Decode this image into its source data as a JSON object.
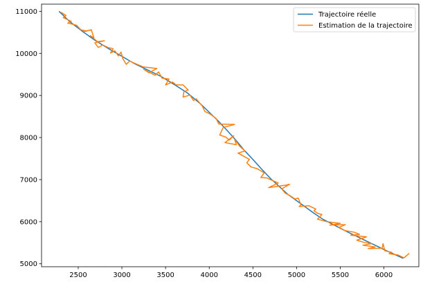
{
  "chart_data": {
    "type": "line",
    "title": "",
    "xlabel": "",
    "ylabel": "",
    "xlim": [
      2080,
      6400
    ],
    "ylim": [
      4930,
      11170
    ],
    "xticks": [
      2500,
      3000,
      3500,
      4000,
      4500,
      5000,
      5500,
      6000
    ],
    "yticks": [
      5000,
      6000,
      7000,
      8000,
      9000,
      10000,
      11000
    ],
    "grid": false,
    "legend_position": "top-right",
    "series": [
      {
        "name": "Trajectoire réelle",
        "color": "#1f77b4",
        "points": [
          [
            2280,
            11000
          ],
          [
            2400,
            10760
          ],
          [
            2550,
            10520
          ],
          [
            2700,
            10300
          ],
          [
            2850,
            10110
          ],
          [
            3000,
            9930
          ],
          [
            3150,
            9750
          ],
          [
            3300,
            9600
          ],
          [
            3450,
            9450
          ],
          [
            3600,
            9260
          ],
          [
            3750,
            9060
          ],
          [
            3900,
            8800
          ],
          [
            4000,
            8600
          ],
          [
            4100,
            8400
          ],
          [
            4200,
            8180
          ],
          [
            4300,
            7950
          ],
          [
            4400,
            7700
          ],
          [
            4500,
            7480
          ],
          [
            4600,
            7250
          ],
          [
            4700,
            7030
          ],
          [
            4800,
            6840
          ],
          [
            4900,
            6650
          ],
          [
            5000,
            6500
          ],
          [
            5100,
            6350
          ],
          [
            5200,
            6200
          ],
          [
            5300,
            6060
          ],
          [
            5450,
            5900
          ],
          [
            5600,
            5740
          ],
          [
            5750,
            5590
          ],
          [
            5900,
            5440
          ],
          [
            6050,
            5290
          ],
          [
            6220,
            5130
          ]
        ]
      },
      {
        "name": "Estimation de la trajectoire",
        "color": "#ff7f0e",
        "points": [
          [
            2300,
            10980
          ],
          [
            2360,
            10900
          ],
          [
            2330,
            10850
          ],
          [
            2420,
            10760
          ],
          [
            2380,
            10720
          ],
          [
            2480,
            10670
          ],
          [
            2530,
            10560
          ],
          [
            2600,
            10530
          ],
          [
            2560,
            10520
          ],
          [
            2650,
            10560
          ],
          [
            2680,
            10370
          ],
          [
            2640,
            10420
          ],
          [
            2720,
            10280
          ],
          [
            2800,
            10300
          ],
          [
            2690,
            10250
          ],
          [
            2730,
            10140
          ],
          [
            2780,
            10200
          ],
          [
            2840,
            10140
          ],
          [
            2900,
            10110
          ],
          [
            2870,
            10010
          ],
          [
            2920,
            10060
          ],
          [
            2960,
            9940
          ],
          [
            2990,
            10030
          ],
          [
            3010,
            9880
          ],
          [
            3050,
            9740
          ],
          [
            3090,
            9820
          ],
          [
            3150,
            9760
          ],
          [
            3240,
            9680
          ],
          [
            3400,
            9640
          ],
          [
            3310,
            9540
          ],
          [
            3250,
            9620
          ],
          [
            3380,
            9480
          ],
          [
            3420,
            9560
          ],
          [
            3460,
            9410
          ],
          [
            3540,
            9390
          ],
          [
            3500,
            9250
          ],
          [
            3580,
            9320
          ],
          [
            3620,
            9250
          ],
          [
            3700,
            9250
          ],
          [
            3760,
            9130
          ],
          [
            3710,
            9090
          ],
          [
            3700,
            8960
          ],
          [
            3780,
            9010
          ],
          [
            3820,
            8880
          ],
          [
            3850,
            8920
          ],
          [
            3920,
            8750
          ],
          [
            3950,
            8620
          ],
          [
            4010,
            8560
          ],
          [
            4080,
            8450
          ],
          [
            4110,
            8320
          ],
          [
            4290,
            8310
          ],
          [
            4160,
            8240
          ],
          [
            4120,
            8060
          ],
          [
            4190,
            8010
          ],
          [
            4230,
            7940
          ],
          [
            4280,
            8040
          ],
          [
            4180,
            7880
          ],
          [
            4310,
            7830
          ],
          [
            4290,
            7960
          ],
          [
            4350,
            7790
          ],
          [
            4410,
            7680
          ],
          [
            4330,
            7630
          ],
          [
            4460,
            7480
          ],
          [
            4430,
            7400
          ],
          [
            4480,
            7300
          ],
          [
            4550,
            7260
          ],
          [
            4630,
            7160
          ],
          [
            4590,
            7050
          ],
          [
            4660,
            7040
          ],
          [
            4700,
            7000
          ],
          [
            4790,
            6920
          ],
          [
            4680,
            6810
          ],
          [
            4880,
            6870
          ],
          [
            4920,
            6890
          ],
          [
            4830,
            6780
          ],
          [
            4870,
            6680
          ],
          [
            4940,
            6600
          ],
          [
            4980,
            6540
          ],
          [
            5020,
            6560
          ],
          [
            5050,
            6400
          ],
          [
            5030,
            6360
          ],
          [
            5140,
            6380
          ],
          [
            5220,
            6300
          ],
          [
            5200,
            6260
          ],
          [
            5240,
            6200
          ],
          [
            5290,
            6170
          ],
          [
            5240,
            6060
          ],
          [
            5350,
            6000
          ],
          [
            5500,
            5960
          ],
          [
            5380,
            5920
          ],
          [
            5560,
            5930
          ],
          [
            5480,
            5860
          ],
          [
            5550,
            5790
          ],
          [
            5660,
            5750
          ],
          [
            5720,
            5700
          ],
          [
            5620,
            5680
          ],
          [
            5800,
            5640
          ],
          [
            5690,
            5560
          ],
          [
            5770,
            5510
          ],
          [
            5860,
            5480
          ],
          [
            5760,
            5440
          ],
          [
            5900,
            5400
          ],
          [
            5820,
            5360
          ],
          [
            5980,
            5370
          ],
          [
            5990,
            5480
          ],
          [
            6010,
            5310
          ],
          [
            6090,
            5270
          ],
          [
            6060,
            5240
          ],
          [
            6160,
            5210
          ],
          [
            6200,
            5170
          ],
          [
            6230,
            5140
          ],
          [
            6290,
            5250
          ]
        ]
      }
    ]
  }
}
